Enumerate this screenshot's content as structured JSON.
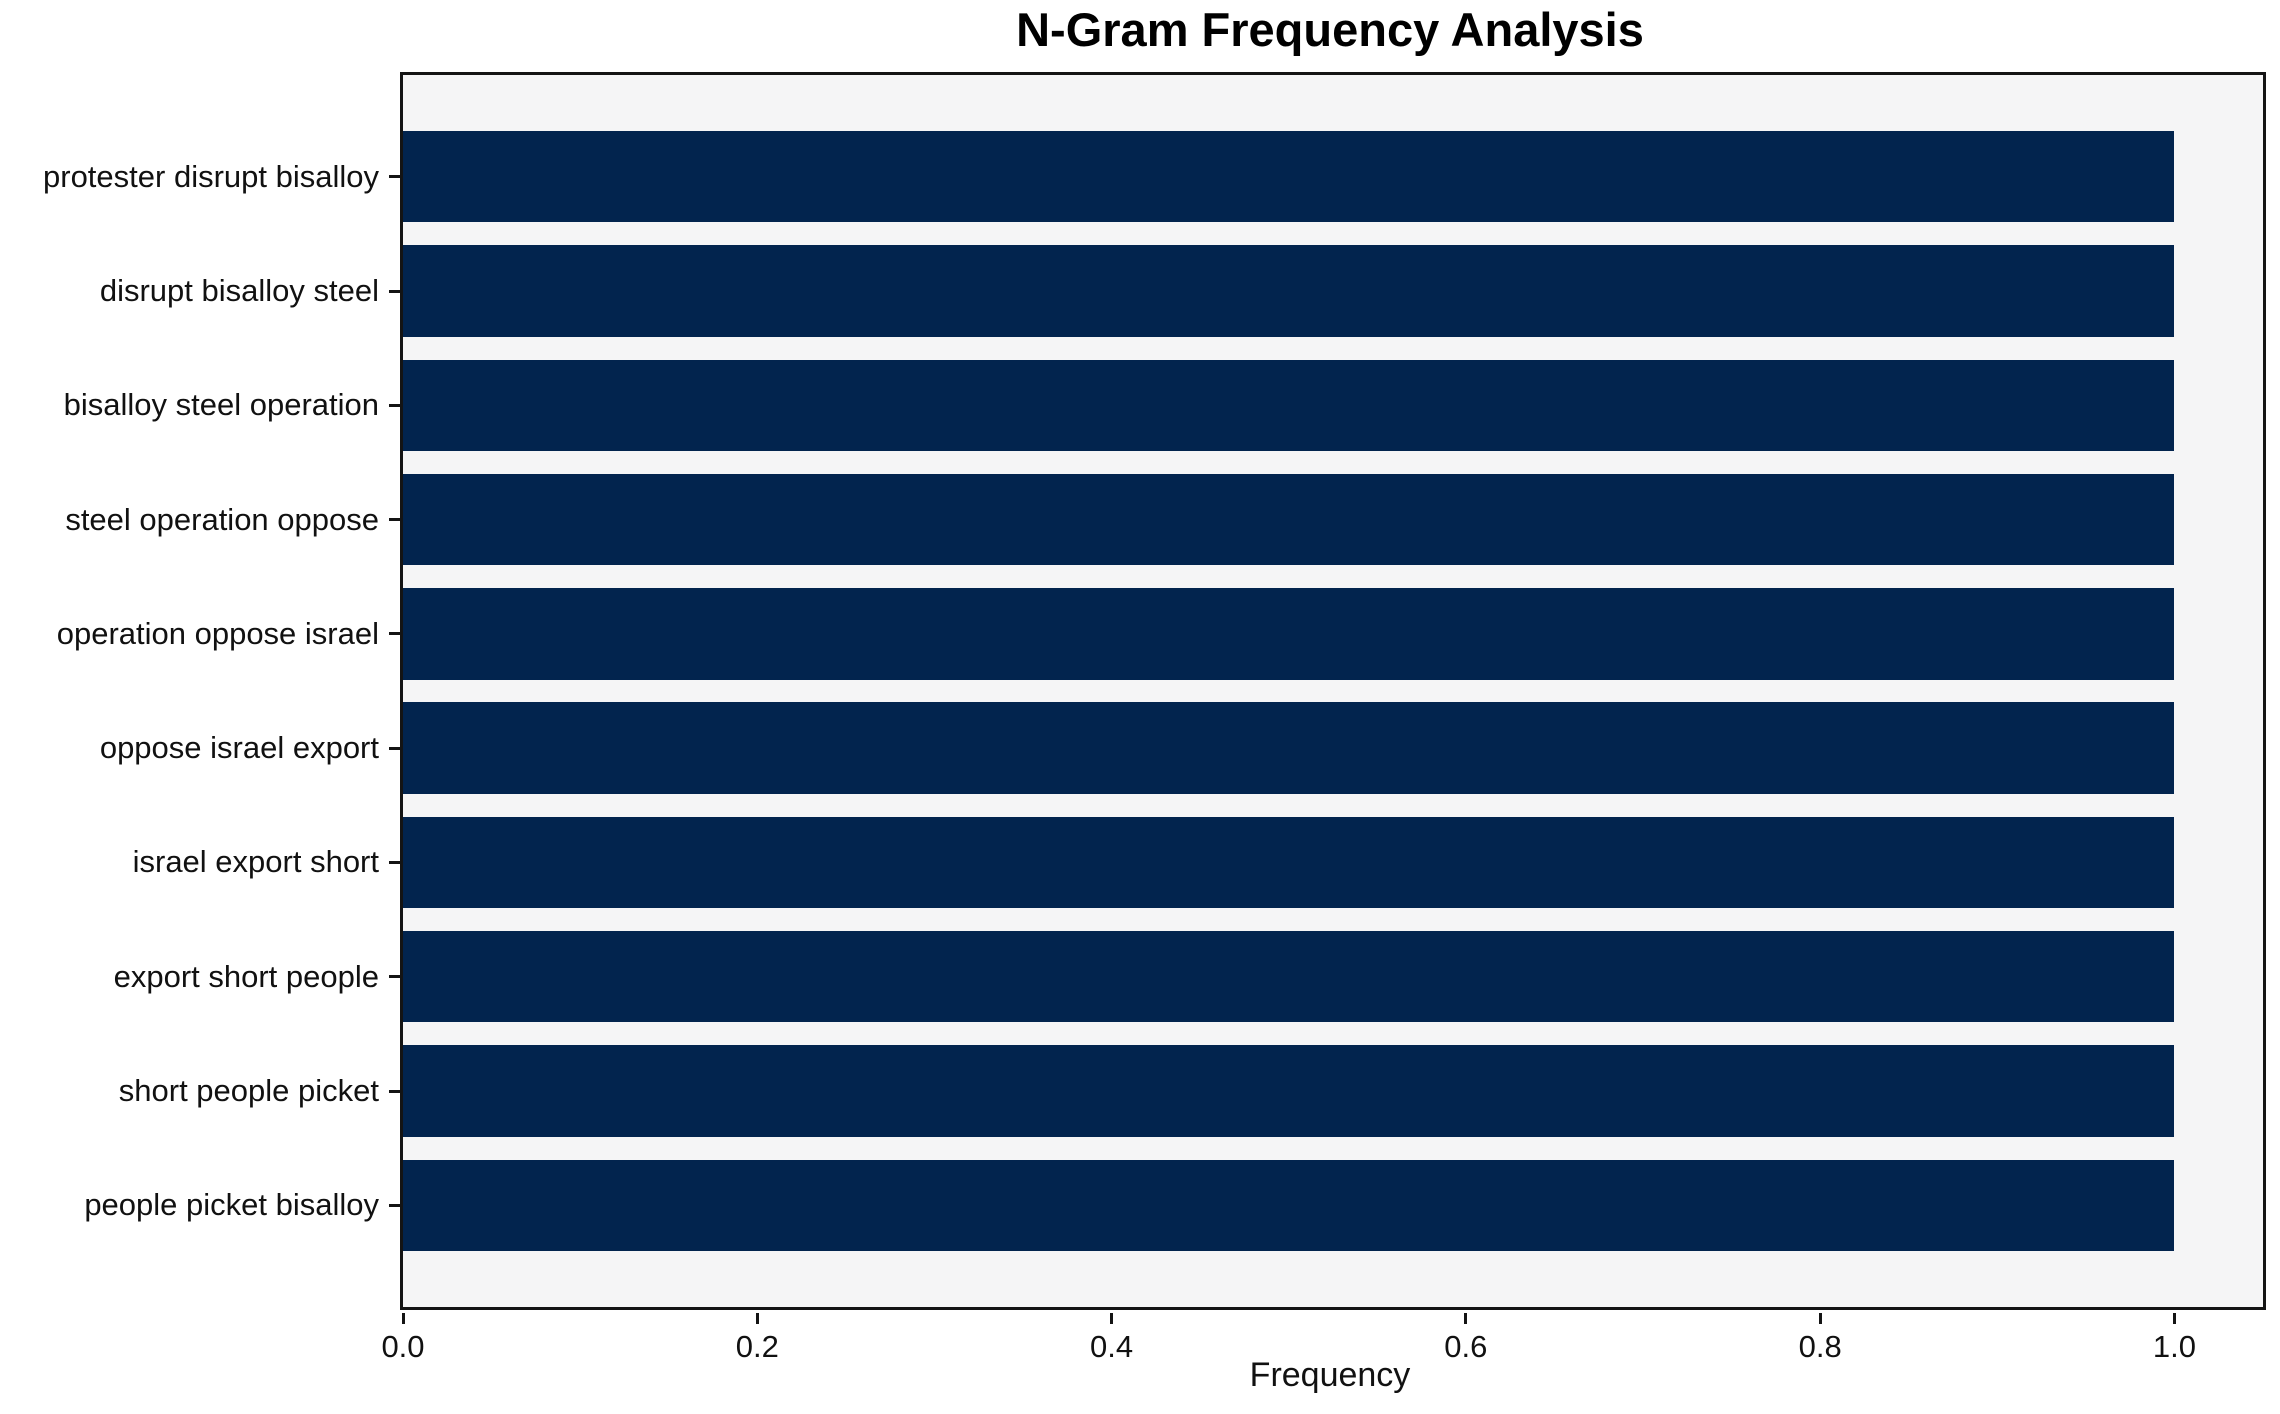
{
  "figure": {
    "background": "#ffffff"
  },
  "chart_data": {
    "type": "bar",
    "orientation": "horizontal",
    "title": "N-Gram Frequency Analysis",
    "xlabel": "Frequency",
    "ylabel": "",
    "categories": [
      "protester disrupt bisalloy",
      "disrupt bisalloy steel",
      "bisalloy steel operation",
      "steel operation oppose",
      "operation oppose israel",
      "oppose israel export",
      "israel export short",
      "export short people",
      "short people picket",
      "people picket bisalloy"
    ],
    "values": [
      1.0,
      1.0,
      1.0,
      1.0,
      1.0,
      1.0,
      1.0,
      1.0,
      1.0,
      1.0
    ],
    "xlim": [
      0,
      1.05
    ],
    "xticks": [
      0.0,
      0.2,
      0.4,
      0.6,
      0.8,
      1.0
    ],
    "xtick_labels": [
      "0.0",
      "0.2",
      "0.4",
      "0.6",
      "0.8",
      "1.0"
    ],
    "bar_height_fraction": 0.8,
    "grid": false,
    "legend": null,
    "colors": {
      "bar": "#02244e",
      "plot_background": "#f5f5f6",
      "spine": "#141414",
      "text": "#111111"
    }
  }
}
